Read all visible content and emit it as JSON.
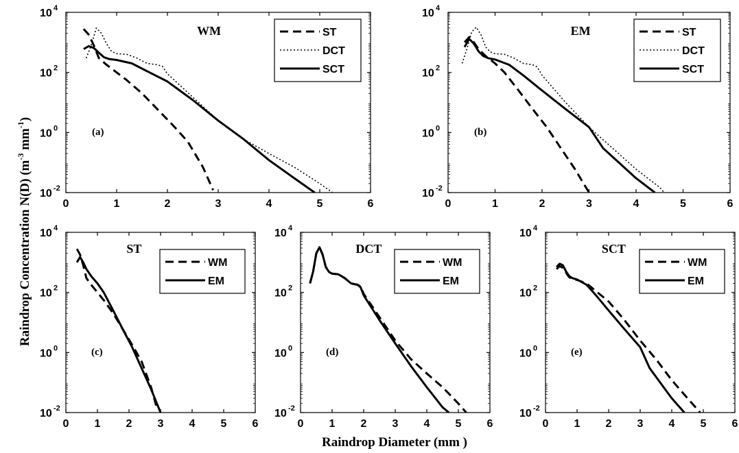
{
  "figure": {
    "xlabel": "Raindrop Diameter (mm )",
    "ylabel": "Raindrop Concentration N(D) (m⁻³ mm⁻¹)"
  },
  "styles": {
    "ST": "dashed",
    "DCT": "dotted",
    "SCT": "solid",
    "WM": "dashed",
    "EM": "solid"
  },
  "chart_data": [
    {
      "type": "line",
      "title": "WM",
      "panel_label": "(a)",
      "xlim": [
        0,
        6
      ],
      "ylim": [
        0.01,
        10000
      ],
      "yscale": "log",
      "xticks": [
        0,
        1,
        2,
        3,
        4,
        5,
        6
      ],
      "legend": [
        "ST",
        "DCT",
        "SCT"
      ],
      "legend_position": "top-right",
      "series": [
        {
          "name": "ST",
          "x": [
            0.35,
            0.45,
            0.55,
            0.65,
            0.8,
            1.0,
            1.2,
            1.5,
            1.8,
            2.1,
            2.4,
            2.7,
            2.9
          ],
          "y": [
            2800,
            1800,
            800,
            300,
            180,
            100,
            55,
            20,
            6,
            1.8,
            0.5,
            0.07,
            0.012
          ]
        },
        {
          "name": "DCT",
          "x": [
            0.4,
            0.5,
            0.6,
            0.7,
            0.8,
            0.9,
            1.0,
            1.2,
            1.4,
            1.6,
            1.8,
            1.9,
            2.0,
            2.5,
            3.0,
            3.5,
            4.0,
            4.5,
            5.0,
            5.25
          ],
          "y": [
            300,
            800,
            3000,
            2000,
            900,
            500,
            420,
            400,
            300,
            200,
            180,
            160,
            90,
            15,
            2.5,
            0.6,
            0.2,
            0.07,
            0.02,
            0.01
          ]
        },
        {
          "name": "SCT",
          "x": [
            0.35,
            0.45,
            0.55,
            0.65,
            0.75,
            0.85,
            1.0,
            1.3,
            1.6,
            2.0,
            2.5,
            3.0,
            3.5,
            4.0,
            4.5,
            4.9
          ],
          "y": [
            600,
            750,
            650,
            450,
            320,
            280,
            260,
            200,
            110,
            50,
            12,
            2.5,
            0.6,
            0.12,
            0.03,
            0.01
          ]
        }
      ]
    },
    {
      "type": "line",
      "title": "EM",
      "panel_label": "(b)",
      "xlim": [
        0,
        6
      ],
      "ylim": [
        0.01,
        10000
      ],
      "yscale": "log",
      "xticks": [
        0,
        1,
        2,
        3,
        4,
        5,
        6
      ],
      "legend": [
        "ST",
        "DCT",
        "SCT"
      ],
      "legend_position": "top-right",
      "series": [
        {
          "name": "ST",
          "x": [
            0.35,
            0.45,
            0.55,
            0.65,
            0.8,
            1.0,
            1.2,
            1.5,
            1.8,
            2.1,
            2.4,
            2.7,
            3.0
          ],
          "y": [
            1000,
            1500,
            1000,
            600,
            350,
            200,
            100,
            25,
            6,
            1.5,
            0.3,
            0.06,
            0.01
          ]
        },
        {
          "name": "DCT",
          "x": [
            0.3,
            0.4,
            0.5,
            0.6,
            0.7,
            0.8,
            0.9,
            1.0,
            1.2,
            1.4,
            1.6,
            1.8,
            1.9,
            2.0,
            2.5,
            3.0,
            3.5,
            4.0,
            4.5,
            4.6
          ],
          "y": [
            200,
            600,
            2200,
            3200,
            1800,
            700,
            480,
            420,
            400,
            300,
            200,
            180,
            150,
            80,
            10,
            1.5,
            0.3,
            0.06,
            0.015,
            0.01
          ]
        },
        {
          "name": "SCT",
          "x": [
            0.35,
            0.45,
            0.55,
            0.65,
            0.75,
            0.85,
            1.0,
            1.3,
            1.6,
            2.0,
            2.5,
            3.0,
            3.3,
            3.7,
            4.0,
            4.4
          ],
          "y": [
            700,
            1300,
            900,
            500,
            350,
            300,
            270,
            180,
            80,
            25,
            6,
            1.5,
            0.3,
            0.08,
            0.03,
            0.01
          ]
        }
      ]
    },
    {
      "type": "line",
      "title": "ST",
      "panel_label": "(c)",
      "xlim": [
        0,
        6
      ],
      "ylim": [
        0.01,
        10000
      ],
      "yscale": "log",
      "xticks": [
        0,
        1,
        2,
        3,
        4,
        5,
        6
      ],
      "legend": [
        "WM",
        "EM"
      ],
      "legend_position": "top-right",
      "series": [
        {
          "name": "WM",
          "x": [
            0.35,
            0.45,
            0.55,
            0.65,
            0.8,
            1.0,
            1.2,
            1.5,
            1.8,
            2.1,
            2.4,
            2.7,
            2.9
          ],
          "y": [
            2800,
            1800,
            800,
            300,
            180,
            100,
            55,
            20,
            6,
            1.8,
            0.5,
            0.07,
            0.012
          ]
        },
        {
          "name": "EM",
          "x": [
            0.35,
            0.45,
            0.55,
            0.65,
            0.8,
            1.0,
            1.2,
            1.5,
            1.8,
            2.1,
            2.4,
            2.7,
            3.0
          ],
          "y": [
            1000,
            1500,
            1000,
            600,
            350,
            200,
            100,
            25,
            6,
            1.5,
            0.3,
            0.06,
            0.01
          ]
        }
      ]
    },
    {
      "type": "line",
      "title": "DCT",
      "panel_label": "(d)",
      "xlim": [
        0,
        6
      ],
      "ylim": [
        0.01,
        10000
      ],
      "yscale": "log",
      "xticks": [
        0,
        1,
        2,
        3,
        4,
        5,
        6
      ],
      "legend": [
        "WM",
        "EM"
      ],
      "legend_position": "top-right",
      "series": [
        {
          "name": "WM",
          "x": [
            0.3,
            0.4,
            0.5,
            0.6,
            0.7,
            0.8,
            0.9,
            1.0,
            1.2,
            1.4,
            1.6,
            1.8,
            1.9,
            2.0,
            2.5,
            3.0,
            3.5,
            4.0,
            4.5,
            5.0,
            5.25
          ],
          "y": [
            200,
            500,
            2000,
            3200,
            1800,
            700,
            480,
            420,
            400,
            300,
            200,
            180,
            160,
            90,
            15,
            2.5,
            0.6,
            0.2,
            0.07,
            0.02,
            0.01
          ]
        },
        {
          "name": "EM",
          "x": [
            0.3,
            0.4,
            0.5,
            0.6,
            0.7,
            0.8,
            0.9,
            1.0,
            1.2,
            1.4,
            1.6,
            1.8,
            1.9,
            2.0,
            2.5,
            3.0,
            3.5,
            4.0,
            4.5,
            4.7
          ],
          "y": [
            200,
            500,
            2000,
            3200,
            1800,
            700,
            480,
            420,
            400,
            300,
            200,
            180,
            150,
            80,
            12,
            2,
            0.35,
            0.07,
            0.015,
            0.01
          ]
        }
      ]
    },
    {
      "type": "line",
      "title": "SCT",
      "panel_label": "(e)",
      "xlim": [
        0,
        6
      ],
      "ylim": [
        0.01,
        10000
      ],
      "yscale": "log",
      "xticks": [
        0,
        1,
        2,
        3,
        4,
        5,
        6
      ],
      "legend": [
        "WM",
        "EM"
      ],
      "legend_position": "top-right",
      "series": [
        {
          "name": "WM",
          "x": [
            0.35,
            0.45,
            0.55,
            0.65,
            0.75,
            0.85,
            1.0,
            1.3,
            1.6,
            2.0,
            2.5,
            3.0,
            3.5,
            4.0,
            4.5,
            4.9
          ],
          "y": [
            600,
            750,
            650,
            450,
            320,
            280,
            260,
            200,
            110,
            50,
            12,
            2.5,
            0.6,
            0.12,
            0.03,
            0.01
          ]
        },
        {
          "name": "EM",
          "x": [
            0.35,
            0.45,
            0.55,
            0.65,
            0.75,
            0.85,
            1.0,
            1.3,
            1.6,
            2.0,
            2.5,
            3.0,
            3.3,
            3.7,
            4.0,
            4.4
          ],
          "y": [
            700,
            900,
            800,
            500,
            350,
            300,
            270,
            180,
            80,
            25,
            6,
            1.5,
            0.3,
            0.08,
            0.03,
            0.01
          ]
        }
      ]
    }
  ]
}
